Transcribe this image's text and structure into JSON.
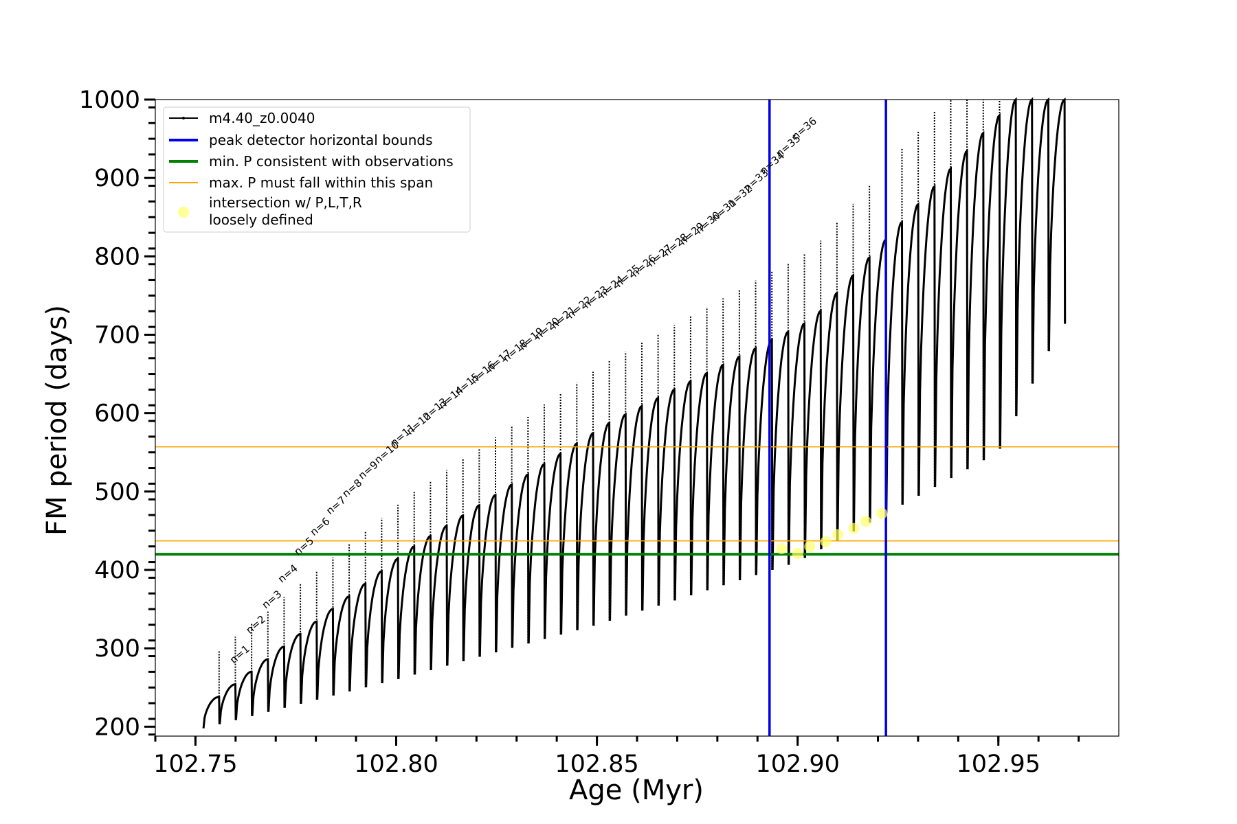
{
  "chart_data": {
    "type": "line",
    "xlabel": "Age (Myr)",
    "ylabel": "FM period (days)",
    "xlim": [
      102.74,
      102.98
    ],
    "ylim": [
      188,
      1000
    ],
    "xticks": [
      102.75,
      102.8,
      102.85,
      102.9,
      102.95
    ],
    "xtick_labels": [
      "102.75",
      "102.80",
      "102.85",
      "102.90",
      "102.95"
    ],
    "yticks": [
      200,
      300,
      400,
      500,
      600,
      700,
      800,
      900,
      1000
    ],
    "ytick_labels": [
      "200",
      "300",
      "400",
      "500",
      "600",
      "700",
      "800",
      "900",
      "1000"
    ],
    "legend_position": "upper-left",
    "series": [
      {
        "name": "m4.40_z0.0040",
        "color": "#000000",
        "style": "line-with-small-dots",
        "cycles_per_branch": "sawtooth pulses",
        "x_start": 102.752,
        "x_end": 102.966,
        "lower_envelope": [
          [
            102.752,
            198
          ],
          [
            102.8,
            260
          ],
          [
            102.85,
            330
          ],
          [
            102.9,
            410
          ],
          [
            102.95,
            550
          ],
          [
            102.966,
            714
          ]
        ],
        "upper_envelope": [
          [
            102.752,
            238
          ],
          [
            102.8,
            428
          ],
          [
            102.85,
            590
          ],
          [
            102.9,
            720
          ],
          [
            102.95,
            1000
          ],
          [
            102.966,
            1000
          ]
        ]
      },
      {
        "name": "peak detector horizontal bounds",
        "color": "#0000ee",
        "style": "vertical-line",
        "x_values": [
          102.893,
          102.922
        ]
      },
      {
        "name": "min. P consistent with observations",
        "color": "#008000",
        "style": "horizontal-line",
        "y_value": 420
      },
      {
        "name": "max. P must fall within this span",
        "color": "#ffa500",
        "style": "horizontal-line",
        "y_values": [
          437,
          557
        ]
      },
      {
        "name": "intersection w/ P,L,T,R\nloosely defined",
        "color": "#ffff66",
        "style": "markers",
        "points": [
          [
            102.896,
            427
          ],
          [
            102.9,
            421
          ],
          [
            102.903,
            430
          ],
          [
            102.907,
            436
          ],
          [
            102.91,
            445
          ],
          [
            102.914,
            453
          ],
          [
            102.917,
            462
          ],
          [
            102.921,
            472
          ]
        ]
      }
    ],
    "legend": [
      "m4.40_z0.0040",
      "peak detector horizontal bounds",
      "min. P consistent with observations",
      "max. P must fall within this span",
      "intersection w/ P,L,T,R",
      "loosely defined"
    ],
    "n_labels": [
      {
        "text": "n=1",
        "x": 102.7595,
        "y": 280
      },
      {
        "text": "n=2",
        "x": 102.7635,
        "y": 318
      },
      {
        "text": "n=3",
        "x": 102.7675,
        "y": 350
      },
      {
        "text": "n=4",
        "x": 102.7715,
        "y": 383
      },
      {
        "text": "n=5",
        "x": 102.7755,
        "y": 418
      },
      {
        "text": "n=6",
        "x": 102.7795,
        "y": 443
      },
      {
        "text": "n=7",
        "x": 102.7835,
        "y": 470
      },
      {
        "text": "n=8",
        "x": 102.7875,
        "y": 492
      },
      {
        "text": "n=9",
        "x": 102.7915,
        "y": 515
      },
      {
        "text": "n=10",
        "x": 102.7955,
        "y": 535
      },
      {
        "text": "n=11",
        "x": 102.7995,
        "y": 557
      },
      {
        "text": "n=12",
        "x": 102.8035,
        "y": 572
      },
      {
        "text": "n=13",
        "x": 102.8075,
        "y": 590
      },
      {
        "text": "n=14",
        "x": 102.8115,
        "y": 605
      },
      {
        "text": "n=15",
        "x": 102.8155,
        "y": 622
      },
      {
        "text": "n=16",
        "x": 102.8195,
        "y": 637
      },
      {
        "text": "n=17",
        "x": 102.8235,
        "y": 652
      },
      {
        "text": "n=18",
        "x": 102.8275,
        "y": 665
      },
      {
        "text": "n=19",
        "x": 102.8315,
        "y": 680
      },
      {
        "text": "n=20",
        "x": 102.8355,
        "y": 693
      },
      {
        "text": "n=21",
        "x": 102.8395,
        "y": 707
      },
      {
        "text": "n=22",
        "x": 102.8435,
        "y": 720
      },
      {
        "text": "n=23",
        "x": 102.8475,
        "y": 733
      },
      {
        "text": "n=24",
        "x": 102.8515,
        "y": 746
      },
      {
        "text": "n=25",
        "x": 102.8555,
        "y": 760
      },
      {
        "text": "n=26",
        "x": 102.8595,
        "y": 773
      },
      {
        "text": "n=27",
        "x": 102.8635,
        "y": 786
      },
      {
        "text": "n=28",
        "x": 102.8675,
        "y": 800
      },
      {
        "text": "n=29",
        "x": 102.8715,
        "y": 814
      },
      {
        "text": "n=30",
        "x": 102.8755,
        "y": 828
      },
      {
        "text": "n=31",
        "x": 102.8795,
        "y": 844
      },
      {
        "text": "n=32",
        "x": 102.8835,
        "y": 862
      },
      {
        "text": "n=33",
        "x": 102.8875,
        "y": 882
      },
      {
        "text": "n=34",
        "x": 102.8915,
        "y": 904
      },
      {
        "text": "n=35",
        "x": 102.8955,
        "y": 926
      },
      {
        "text": "n=36",
        "x": 102.8995,
        "y": 948
      }
    ]
  }
}
